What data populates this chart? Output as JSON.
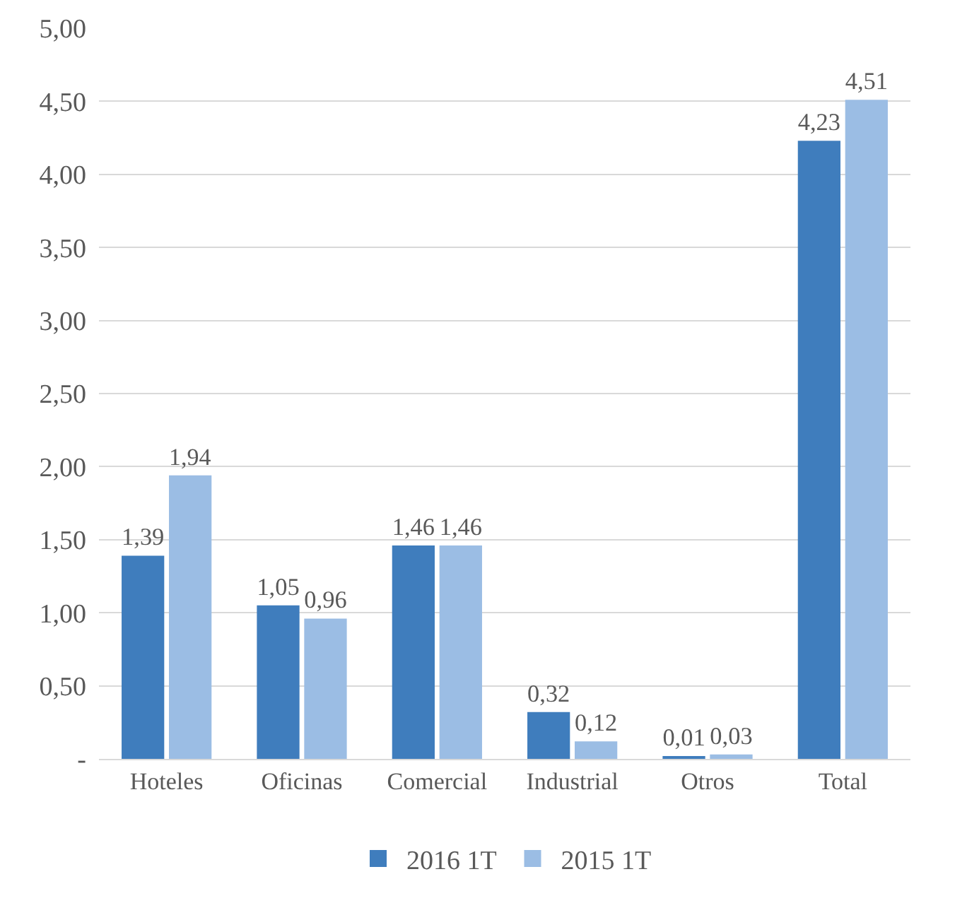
{
  "chart_data": {
    "type": "bar",
    "categories": [
      "Hoteles",
      "Oficinas",
      "Comercial",
      "Industrial",
      "Otros",
      "Total"
    ],
    "series": [
      {
        "name": "2016 1T",
        "color": "#3f7dbd",
        "values": [
          1.39,
          1.05,
          1.46,
          0.32,
          0.01,
          4.23
        ],
        "value_labels": [
          "1,39",
          "1,05",
          "1,46",
          "0,32",
          "0,01",
          "4,23"
        ]
      },
      {
        "name": "2015 1T",
        "color": "#9bbde4",
        "values": [
          1.94,
          0.96,
          1.46,
          0.12,
          0.03,
          4.51
        ],
        "value_labels": [
          "1,94",
          "0,96",
          "1,46",
          "0,12",
          "0,03",
          "4,51"
        ]
      }
    ],
    "ylim": [
      0,
      5
    ],
    "yticks": [
      {
        "value": 0,
        "label": "-"
      },
      {
        "value": 0.5,
        "label": "0,50"
      },
      {
        "value": 1,
        "label": "1,00"
      },
      {
        "value": 1.5,
        "label": "1,50"
      },
      {
        "value": 2,
        "label": "2,00"
      },
      {
        "value": 2.5,
        "label": "2,50"
      },
      {
        "value": 3,
        "label": "3,00"
      },
      {
        "value": 3.5,
        "label": "3,50"
      },
      {
        "value": 4,
        "label": "4,00"
      },
      {
        "value": 4.5,
        "label": "4,50"
      },
      {
        "value": 5,
        "label": "5,00"
      }
    ],
    "grid": "y",
    "legend": "bottom"
  }
}
